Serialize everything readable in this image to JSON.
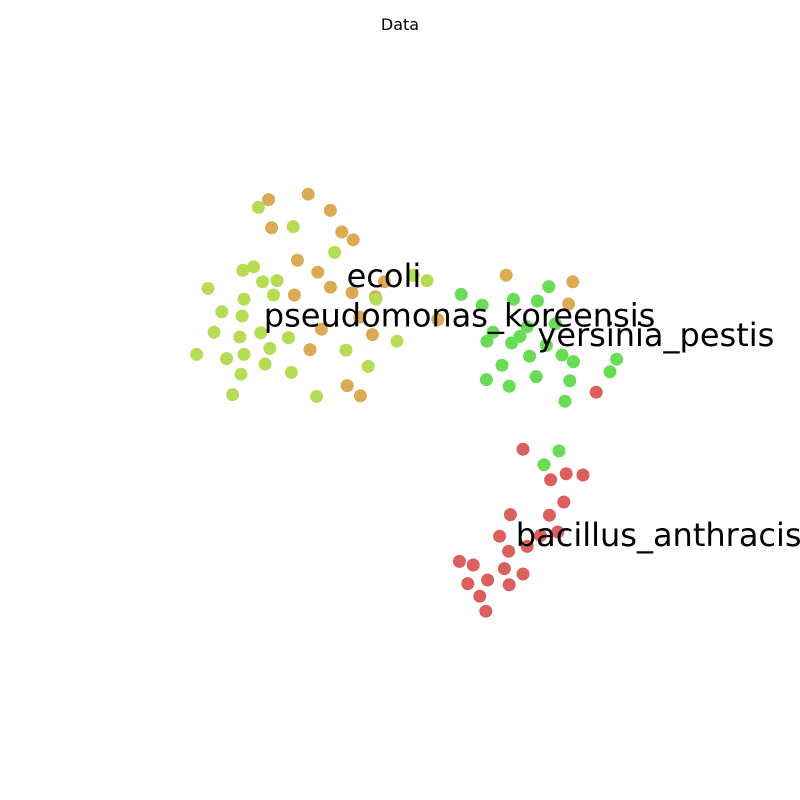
{
  "chart_data": {
    "type": "scatter",
    "title": "Data",
    "xlabel": "",
    "ylabel": "",
    "axes_visible": false,
    "grid": false,
    "legend": "none",
    "xlim": [
      0,
      100
    ],
    "ylim": [
      0,
      100
    ],
    "series": [
      {
        "color": "#dbaa55",
        "points": [
          [
            28.1,
            83.4
          ],
          [
            34.7,
            84.3
          ],
          [
            38.4,
            81.6
          ],
          [
            40.3,
            78.0
          ],
          [
            42.2,
            76.7
          ],
          [
            28.6,
            78.7
          ],
          [
            32.9,
            73.3
          ],
          [
            36.3,
            71.3
          ],
          [
            38.4,
            68.8
          ],
          [
            32.4,
            67.5
          ],
          [
            42.0,
            67.9
          ],
          [
            45.9,
            67.2
          ],
          [
            47.4,
            69.7
          ],
          [
            56.3,
            63.4
          ],
          [
            43.3,
            63.8
          ],
          [
            45.4,
            60.9
          ],
          [
            36.9,
            61.8
          ],
          [
            35.0,
            58.4
          ],
          [
            41.2,
            52.4
          ],
          [
            43.4,
            50.7
          ],
          [
            67.7,
            70.8
          ],
          [
            78.8,
            69.7
          ],
          [
            78.1,
            66.0
          ]
        ]
      },
      {
        "color": "#b5dc54",
        "points": [
          [
            26.4,
            82.1
          ],
          [
            32.2,
            78.9
          ],
          [
            39.1,
            74.6
          ],
          [
            25.6,
            72.2
          ],
          [
            23.8,
            71.6
          ],
          [
            27.1,
            69.7
          ],
          [
            29.5,
            69.9
          ],
          [
            18.0,
            68.6
          ],
          [
            24.0,
            66.8
          ],
          [
            28.9,
            67.5
          ],
          [
            20.3,
            64.7
          ],
          [
            23.7,
            64.0
          ],
          [
            46.0,
            66.8
          ],
          [
            52.2,
            70.8
          ],
          [
            54.5,
            69.9
          ],
          [
            19.0,
            61.3
          ],
          [
            23.3,
            60.5
          ],
          [
            26.8,
            61.2
          ],
          [
            31.4,
            60.4
          ],
          [
            28.3,
            58.6
          ],
          [
            16.1,
            57.6
          ],
          [
            21.1,
            56.9
          ],
          [
            24.0,
            57.6
          ],
          [
            27.5,
            56.0
          ],
          [
            41.0,
            58.3
          ],
          [
            49.5,
            59.8
          ],
          [
            23.5,
            54.3
          ],
          [
            31.9,
            54.6
          ],
          [
            44.7,
            55.6
          ],
          [
            22.1,
            50.9
          ],
          [
            36.1,
            50.6
          ]
        ]
      },
      {
        "color": "#68dc55",
        "points": [
          [
            60.2,
            67.6
          ],
          [
            63.7,
            65.8
          ],
          [
            68.9,
            66.8
          ],
          [
            72.9,
            66.5
          ],
          [
            74.8,
            68.9
          ],
          [
            75.9,
            62.7
          ],
          [
            71.2,
            62.2
          ],
          [
            65.5,
            61.3
          ],
          [
            70.0,
            60.6
          ],
          [
            64.5,
            59.8
          ],
          [
            68.6,
            59.5
          ],
          [
            74.4,
            59.1
          ],
          [
            71.6,
            57.3
          ],
          [
            77.0,
            57.5
          ],
          [
            78.9,
            56.4
          ],
          [
            86.1,
            56.8
          ],
          [
            67.0,
            55.8
          ],
          [
            85.0,
            54.7
          ],
          [
            72.7,
            53.9
          ],
          [
            64.4,
            53.4
          ],
          [
            78.3,
            53.2
          ],
          [
            68.2,
            52.3
          ],
          [
            77.5,
            49.8
          ],
          [
            76.5,
            41.5
          ],
          [
            74.0,
            39.2
          ]
        ]
      },
      {
        "color": "#db5f5c",
        "points": [
          [
            82.7,
            51.3
          ],
          [
            70.5,
            41.8
          ],
          [
            77.7,
            37.7
          ],
          [
            80.5,
            37.5
          ],
          [
            75.1,
            36.7
          ],
          [
            77.3,
            33.0
          ],
          [
            68.4,
            30.9
          ],
          [
            74.9,
            30.8
          ],
          [
            76.3,
            28.0
          ],
          [
            73.4,
            27.4
          ],
          [
            66.6,
            27.3
          ],
          [
            71.2,
            25.6
          ],
          [
            68.1,
            24.8
          ],
          [
            59.9,
            23.1
          ],
          [
            62.2,
            22.5
          ],
          [
            67.4,
            21.9
          ],
          [
            70.5,
            21.0
          ],
          [
            64.6,
            20.0
          ],
          [
            61.3,
            19.4
          ],
          [
            68.2,
            19.2
          ],
          [
            63.3,
            17.3
          ],
          [
            64.3,
            14.8
          ]
        ]
      }
    ],
    "annotations": [
      {
        "text": "ecoli",
        "x": 41.1,
        "y": 70.7
      },
      {
        "text": "pseudomonas_koreensis",
        "x": 27.3,
        "y": 64.1
      },
      {
        "text": "yersinia_pestis",
        "x": 72.9,
        "y": 60.8
      },
      {
        "text": "bacillus_anthracis",
        "x": 69.3,
        "y": 27.5
      }
    ]
  }
}
